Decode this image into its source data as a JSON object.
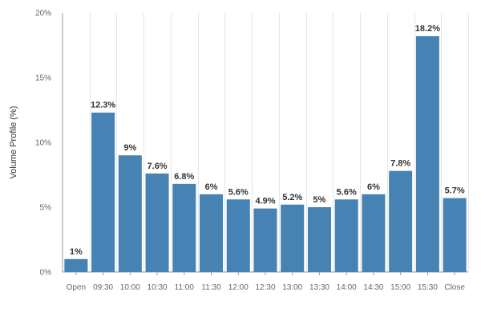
{
  "chart_data": {
    "type": "bar",
    "ylabel": "Volume Profile (%)",
    "xlabel": "",
    "ylim": [
      0,
      20
    ],
    "yticks": [
      0,
      5,
      10,
      15,
      20
    ],
    "ytick_labels": [
      "0%",
      "5%",
      "10%",
      "15%",
      "20%"
    ],
    "grid": "vertical",
    "bar_color": "#4682b4",
    "categories": [
      "Open",
      "09:30",
      "10:00",
      "10:30",
      "11:00",
      "11:30",
      "12:00",
      "12:30",
      "13:00",
      "13:30",
      "14:00",
      "14:30",
      "15:00",
      "15:30",
      "Close"
    ],
    "values": [
      1,
      12.3,
      9,
      7.6,
      6.8,
      6,
      5.6,
      4.9,
      5.2,
      5,
      5.6,
      6,
      7.8,
      18.2,
      5.7
    ],
    "data_labels": [
      "1%",
      "12.3%",
      "9%",
      "7.6%",
      "6.8%",
      "6%",
      "5.6%",
      "4.9%",
      "5.2%",
      "5%",
      "5.6%",
      "6%",
      "7.8%",
      "18.2%",
      "5.7%"
    ]
  }
}
